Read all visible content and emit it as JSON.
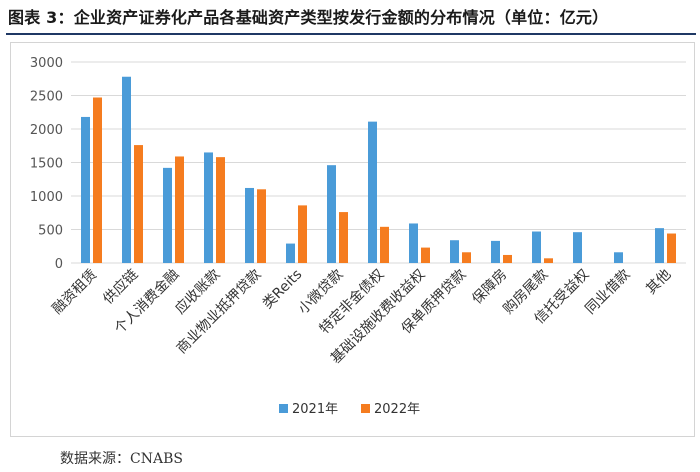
{
  "figure": {
    "title": "图表 3：企业资产证券化产品各基础资产类型按发行金额的分布情况（单位：亿元）",
    "source": "数据来源：CNABS"
  },
  "colors": {
    "series_2021": "#4a9bd8",
    "series_2022": "#f57c1f",
    "gridline": "#d9d9d9",
    "axis_text": "#555555",
    "title_rule": "#1f3864"
  },
  "chart_data": {
    "type": "bar",
    "title": "",
    "xlabel": "",
    "ylabel": "",
    "ylim": [
      0,
      3000
    ],
    "yticks": [
      0,
      500,
      1000,
      1500,
      2000,
      2500,
      3000
    ],
    "grid": true,
    "legend_position": "bottom",
    "categories": [
      "融资租赁",
      "供应链",
      "个人消费金融",
      "应收账款",
      "商业物业抵押贷款",
      "类Reits",
      "小微贷款",
      "特定非金债权",
      "基础设施收费收益权",
      "保单质押贷款",
      "保障房",
      "购房尾款",
      "信托受益权",
      "同业借款",
      "其他"
    ],
    "series": [
      {
        "name": "2021年",
        "values": [
          2180,
          2780,
          1420,
          1650,
          1120,
          290,
          1460,
          2110,
          590,
          340,
          330,
          470,
          460,
          160,
          520
        ]
      },
      {
        "name": "2022年",
        "values": [
          2470,
          1760,
          1590,
          1580,
          1100,
          860,
          760,
          540,
          230,
          160,
          120,
          70,
          0,
          0,
          440
        ]
      }
    ]
  }
}
